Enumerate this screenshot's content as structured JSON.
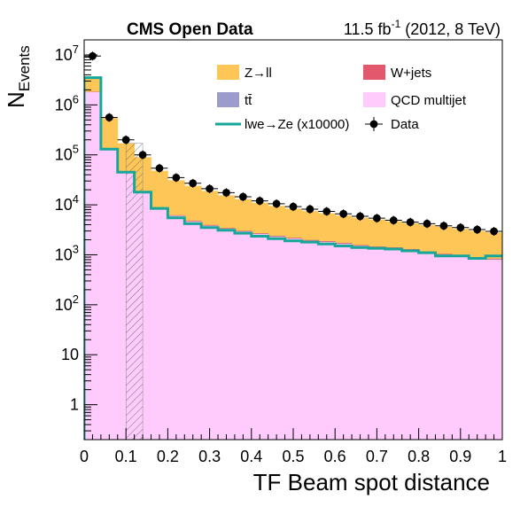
{
  "header": {
    "title": "CMS Open Data",
    "lumi_prefix": "11.5 fb",
    "lumi_exponent": "-1",
    "lumi_suffix": " (2012, 8 TeV)"
  },
  "chart_data": {
    "type": "bar",
    "y_scale": "log",
    "xlabel": "TF Beam spot distance",
    "ylabel_main": "N",
    "ylabel_sub": "Events",
    "xlim": [
      0,
      1
    ],
    "ylim": [
      0.2,
      20000000
    ],
    "x_ticks": [
      "0",
      "0.1",
      "0.2",
      "0.3",
      "0.4",
      "0.5",
      "0.6",
      "0.7",
      "0.8",
      "0.9",
      "1"
    ],
    "y_ticks": [
      {
        "value": 1,
        "base": "1",
        "exp": ""
      },
      {
        "value": 10,
        "base": "10",
        "exp": ""
      },
      {
        "value": 100,
        "base": "10",
        "exp": "2"
      },
      {
        "value": 1000,
        "base": "10",
        "exp": "3"
      },
      {
        "value": 10000,
        "base": "10",
        "exp": "4"
      },
      {
        "value": 100000,
        "base": "10",
        "exp": "5"
      },
      {
        "value": 1000000,
        "base": "10",
        "exp": "6"
      },
      {
        "value": 10000000,
        "base": "10",
        "exp": "7"
      }
    ],
    "bin_edges": [
      0,
      0.04,
      0.08,
      0.12,
      0.16,
      0.2,
      0.24,
      0.28,
      0.32,
      0.36,
      0.4,
      0.44,
      0.48,
      0.52,
      0.56,
      0.6,
      0.64,
      0.68,
      0.72,
      0.76,
      0.8,
      0.84,
      0.88,
      0.92,
      0.96,
      1.0
    ],
    "stack_totals": {
      "qcd": [
        1800000,
        130000,
        45000,
        18000,
        8500,
        6000,
        4600,
        3800,
        3300,
        2900,
        2600,
        2300,
        2100,
        1900,
        1800,
        1650,
        1500,
        1400,
        1350,
        1250,
        1100,
        1000,
        950,
        850,
        800
      ],
      "ttbar": [
        1810000,
        131000,
        45500,
        18200,
        8600,
        6080,
        4680,
        3860,
        3360,
        2950,
        2640,
        2340,
        2130,
        1930,
        1830,
        1680,
        1530,
        1425,
        1375,
        1270,
        1120,
        1020,
        965,
        865,
        815
      ],
      "wjets": [
        1830000,
        133000,
        46500,
        18600,
        8800,
        6200,
        4800,
        3960,
        3440,
        3020,
        2700,
        2400,
        2190,
        1980,
        1880,
        1730,
        1570,
        1465,
        1410,
        1300,
        1150,
        1045,
        990,
        885,
        835
      ],
      "zll": [
        3500000,
        550000,
        170000,
        90000,
        48000,
        31000,
        24000,
        19000,
        15500,
        13000,
        11000,
        9500,
        8400,
        7500,
        6800,
        6100,
        5500,
        5100,
        4700,
        4300,
        3950,
        3650,
        3300,
        3000,
        2800
      ]
    },
    "signal": {
      "name": "lwe→Ze (x10000)",
      "values": [
        3500000,
        130000,
        45000,
        18000,
        8500,
        5500,
        4200,
        3500,
        3100,
        2700,
        2350,
        2100,
        1900,
        1800,
        1650,
        1500,
        1400,
        1350,
        1300,
        1200,
        1100,
        950,
        950,
        850,
        950
      ]
    },
    "data": {
      "name": "Data",
      "values": [
        9500000,
        560000,
        200000,
        100000,
        54000,
        35000,
        27000,
        21000,
        17500,
        14500,
        12000,
        10500,
        9200,
        8200,
        7400,
        6600,
        5900,
        5400,
        4900,
        4500,
        4200,
        3800,
        3500,
        3200,
        2950
      ]
    },
    "legend": [
      {
        "key": "zll",
        "label": "Z→ll",
        "kind": "fill",
        "color": "#fdc656"
      },
      {
        "key": "wjets",
        "label": "W+jets",
        "kind": "fill",
        "color": "#e3586c"
      },
      {
        "key": "ttbar",
        "label": "tt̄",
        "kind": "fill",
        "color": "#9b9ccd"
      },
      {
        "key": "qcd",
        "label": "QCD multijet",
        "kind": "fill",
        "color": "#fecbfc"
      },
      {
        "key": "signal",
        "label": "lwe→Ze (x10000)",
        "kind": "line",
        "color": "#17a69a"
      },
      {
        "key": "data",
        "label": "Data",
        "kind": "marker",
        "color": "#000000"
      }
    ],
    "legend_position": "top-right",
    "uncertainty_band": {
      "x_range": [
        0.1,
        0.14
      ],
      "style": "hatched"
    },
    "grid": false
  }
}
